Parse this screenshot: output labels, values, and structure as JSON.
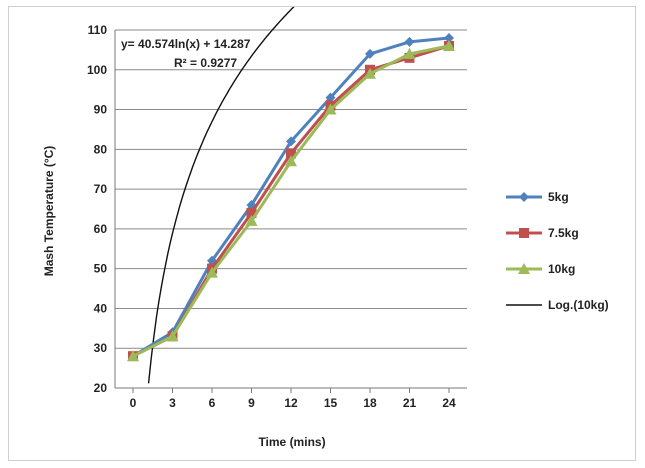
{
  "chart_data": {
    "type": "line",
    "xlabel": "Time (mins)",
    "ylabel": "Mash Temperature (°C)",
    "x": [
      0,
      3,
      6,
      9,
      12,
      15,
      18,
      21,
      24
    ],
    "xlim": [
      0,
      24
    ],
    "ylim": [
      20,
      110
    ],
    "yticks": [
      20,
      30,
      40,
      50,
      60,
      70,
      80,
      90,
      100,
      110
    ],
    "grid": "horizontal",
    "legend_position": "right",
    "series": [
      {
        "name": "5kg",
        "color": "#4f81bd",
        "marker": "diamond",
        "values": [
          28,
          34,
          52,
          66,
          82,
          93,
          104,
          107,
          108
        ]
      },
      {
        "name": "7.5kg",
        "color": "#c0504d",
        "marker": "square",
        "values": [
          28,
          33,
          50,
          64,
          79,
          91,
          100,
          103,
          106
        ]
      },
      {
        "name": "10kg",
        "color": "#9bbb59",
        "marker": "triangle",
        "values": [
          28,
          33,
          49,
          62,
          77,
          90,
          99,
          104,
          106
        ]
      }
    ],
    "trendline": {
      "name": "Log.(10kg)",
      "color": "#111111",
      "equation": "y= 40.574ln(x) + 14.287",
      "r_squared": "R² = 0.9277",
      "a": 40.574,
      "b": 14.287
    }
  }
}
